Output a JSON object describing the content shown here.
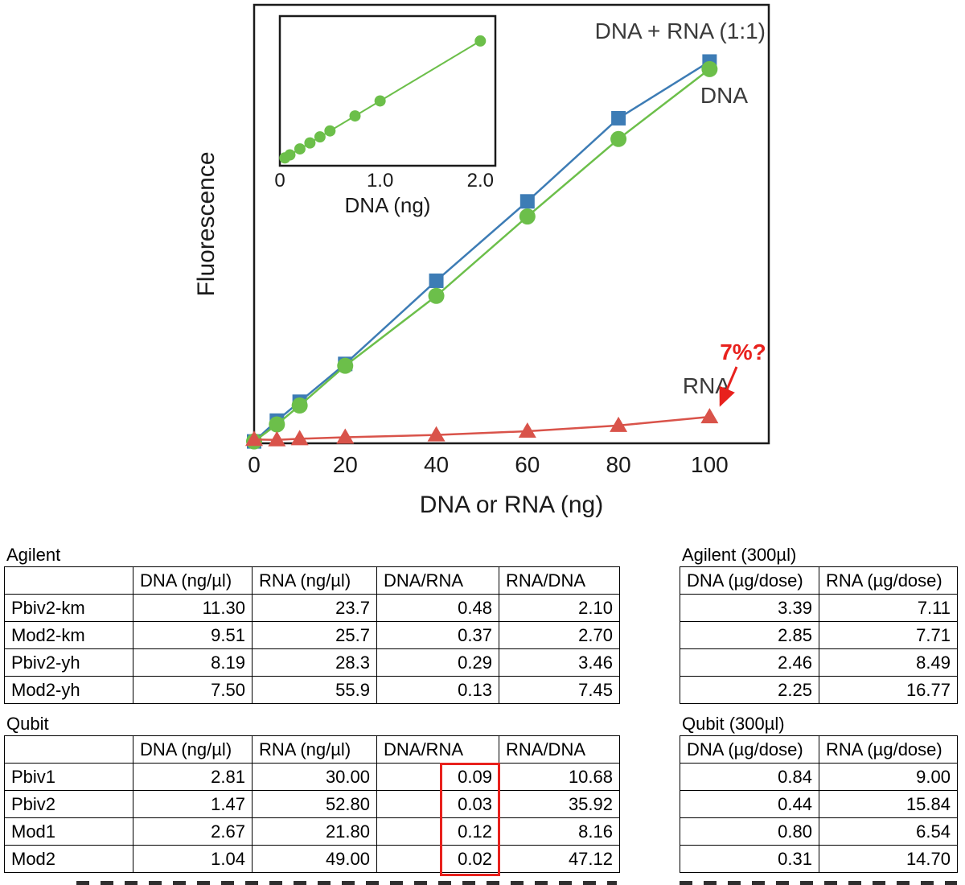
{
  "chart_data": {
    "type": "line",
    "title": "",
    "xlabel": "DNA or RNA (ng)",
    "ylabel": "Fluorescence",
    "x_ticks": [
      0,
      20,
      40,
      60,
      80,
      100
    ],
    "xlim": [
      0,
      113
    ],
    "ylim": [
      0,
      116
    ],
    "grid": false,
    "x": [
      0,
      5,
      10,
      20,
      40,
      60,
      80,
      100
    ],
    "series": [
      {
        "id": "dna-rna",
        "name": "DNA + RNA (1:1)",
        "marker": "square",
        "color": "#3d7cb5",
        "values": [
          0.5,
          6,
          11,
          21,
          43,
          64,
          86,
          101
        ]
      },
      {
        "id": "dna",
        "name": "DNA",
        "marker": "circle",
        "color": "#6cbf4a",
        "values": [
          0.5,
          5,
          10,
          20.5,
          39,
          60,
          80.5,
          99
        ]
      },
      {
        "id": "rna",
        "name": "RNA",
        "marker": "triangle",
        "color": "#d9534a",
        "values": [
          1,
          0.9,
          1.2,
          1.6,
          2.2,
          3.2,
          4.7,
          7
        ]
      }
    ],
    "annotations": {
      "series_labels": [
        {
          "text": "DNA + RNA (1:1)",
          "color": "#3a3a3a"
        },
        {
          "text": "DNA",
          "color": "#3a3a3a"
        },
        {
          "text": "RNA",
          "color": "#3a3a3a"
        }
      ],
      "callout": {
        "text": "7%?",
        "color": "#e8211d"
      }
    },
    "inset": {
      "xlabel": "DNA (ng)",
      "x_ticks": [
        "0",
        "1.0",
        "2.0"
      ],
      "xlim": [
        0,
        2.15
      ],
      "x": [
        0.05,
        0.1,
        0.2,
        0.3,
        0.4,
        0.5,
        0.75,
        1.0,
        2.0
      ],
      "values": [
        0.05,
        0.1,
        0.2,
        0.3,
        0.4,
        0.5,
        0.75,
        1.0,
        2.0
      ],
      "color": "#6cbf4a"
    }
  },
  "tables": {
    "agilent": {
      "title": "Agilent",
      "columns": [
        "",
        "DNA (ng/µl)",
        "RNA (ng/µl)",
        "DNA/RNA",
        "RNA/DNA"
      ],
      "rows": [
        [
          "Pbiv2-km",
          "11.30",
          "23.7",
          "0.48",
          "2.10"
        ],
        [
          "Mod2-km",
          "9.51",
          "25.7",
          "0.37",
          "2.70"
        ],
        [
          "Pbiv2-yh",
          "8.19",
          "28.3",
          "0.29",
          "3.46"
        ],
        [
          "Mod2-yh",
          "7.50",
          "55.9",
          "0.13",
          "7.45"
        ]
      ]
    },
    "agilent_dose": {
      "title": "Agilent (300µl)",
      "columns": [
        "DNA (µg/dose)",
        "RNA (µg/dose)"
      ],
      "rows": [
        [
          "3.39",
          "7.11"
        ],
        [
          "2.85",
          "7.71"
        ],
        [
          "2.46",
          "8.49"
        ],
        [
          "2.25",
          "16.77"
        ]
      ]
    },
    "qubit": {
      "title": "Qubit",
      "columns": [
        "",
        "DNA (ng/µl)",
        "RNA (ng/µl)",
        "DNA/RNA",
        "RNA/DNA"
      ],
      "rows": [
        [
          "Pbiv1",
          "2.81",
          "30.00",
          "0.09",
          "10.68"
        ],
        [
          "Pbiv2",
          "1.47",
          "52.80",
          "0.03",
          "35.92"
        ],
        [
          "Mod1",
          "2.67",
          "21.80",
          "0.12",
          "8.16"
        ],
        [
          "Mod2",
          "1.04",
          "49.00",
          "0.02",
          "47.12"
        ]
      ],
      "highlight_column": "DNA/RNA",
      "highlight_color": "#e8211d"
    },
    "qubit_dose": {
      "title": "Qubit (300µl)",
      "columns": [
        "DNA (µg/dose)",
        "RNA (µg/dose)"
      ],
      "rows": [
        [
          "0.84",
          "9.00"
        ],
        [
          "0.44",
          "15.84"
        ],
        [
          "0.80",
          "6.54"
        ],
        [
          "0.31",
          "14.70"
        ]
      ]
    }
  }
}
